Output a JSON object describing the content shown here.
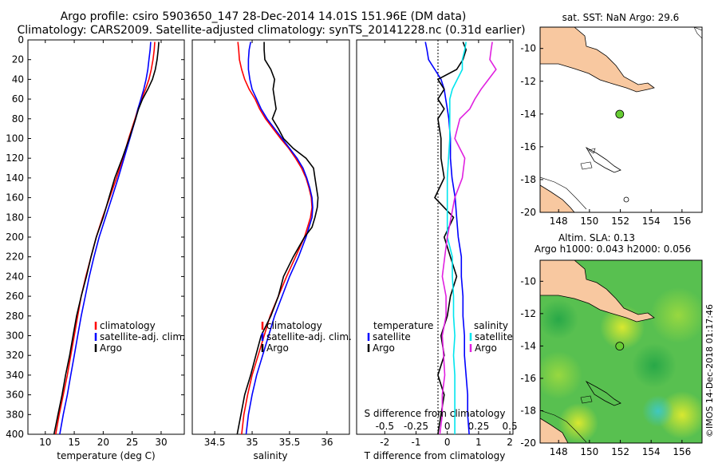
{
  "title_line1": "Argo profile: csiro 5903650_147 28-Dec-2014 14.01S 151.96E (DM data)",
  "title_line2": "Climatology: CARS2009. Satellite-adjusted climatology: synTS_20141228.nc (0.31d earlier)",
  "sst_title": "sat. SST: NaN Argo: 29.6",
  "sla_title1": "Altim. SLA: 0.13",
  "sla_title2": "Argo h1000: 0.043 h2000: 0.056",
  "credit": "©IMOS 14-Dec-2018 01:17:46",
  "colors": {
    "climatology": "#ff0000",
    "satellite": "#0000ff",
    "argo": "#000000",
    "sat_salinity": "#00e5ee",
    "argo_salinity": "#e020e0",
    "land": "#f8c8a0",
    "float_marker": "#66cc33"
  },
  "chart_data": [
    {
      "type": "line",
      "name": "temperature",
      "xlabel": "temperature (deg C)",
      "ylabel": "",
      "xlim": [
        7,
        34
      ],
      "ylim": [
        400,
        0
      ],
      "xticks": [
        "10",
        "15",
        "20",
        "25",
        "30"
      ],
      "xtick_values": [
        10,
        15,
        20,
        25,
        30
      ],
      "yticks": [
        "0",
        "20",
        "40",
        "60",
        "80",
        "100",
        "120",
        "140",
        "160",
        "180",
        "200",
        "220",
        "240",
        "260",
        "280",
        "300",
        "320",
        "340",
        "360",
        "380",
        "400"
      ],
      "legend": [
        "climatology",
        "satellite-adj. clim.",
        "Argo"
      ],
      "legend_position": "lower-right",
      "depth": [
        2,
        10,
        20,
        30,
        40,
        50,
        60,
        70,
        80,
        100,
        120,
        140,
        160,
        180,
        200,
        220,
        240,
        260,
        280,
        300,
        320,
        340,
        360,
        380,
        400
      ],
      "series": [
        {
          "name": "climatology",
          "values": [
            28.9,
            28.8,
            28.6,
            28.3,
            27.9,
            27.3,
            26.6,
            26.0,
            25.5,
            24.4,
            23.4,
            22.3,
            21.1,
            19.9,
            18.8,
            17.9,
            17.0,
            16.2,
            15.6,
            15.0,
            14.4,
            13.8,
            13.1,
            12.4,
            11.8
          ]
        },
        {
          "name": "satellite-adj. clim.",
          "values": [
            28.2,
            28.1,
            27.9,
            27.7,
            27.4,
            27.0,
            26.5,
            26.0,
            25.6,
            24.6,
            23.6,
            22.6,
            21.5,
            20.4,
            19.3,
            18.4,
            17.6,
            16.9,
            16.2,
            15.6,
            15.0,
            14.4,
            13.8,
            13.1,
            12.5
          ]
        },
        {
          "name": "Argo",
          "values": [
            29.6,
            29.5,
            29.3,
            29.0,
            28.5,
            27.7,
            26.8,
            26.1,
            25.6,
            24.5,
            23.3,
            22.0,
            21.0,
            20.0,
            18.8,
            17.9,
            17.1,
            16.2,
            15.4,
            14.8,
            14.2,
            13.5,
            12.9,
            12.2,
            11.5
          ]
        }
      ]
    },
    {
      "type": "line",
      "name": "salinity",
      "xlabel": "salinity",
      "xlim": [
        34.2,
        36.3
      ],
      "ylim": [
        400,
        0
      ],
      "xticks": [
        "34.5",
        "35",
        "35.5",
        "36"
      ],
      "xtick_values": [
        34.5,
        35,
        35.5,
        36
      ],
      "legend": [
        "climatology",
        "satellite-adj. clim.",
        "Argo"
      ],
      "legend_position": "lower-right",
      "depth": [
        2,
        10,
        20,
        30,
        40,
        50,
        60,
        70,
        80,
        90,
        100,
        110,
        120,
        130,
        140,
        150,
        160,
        170,
        180,
        190,
        200,
        220,
        240,
        260,
        280,
        300,
        320,
        340,
        360,
        380,
        400
      ],
      "series": [
        {
          "name": "climatology",
          "values": [
            34.81,
            34.82,
            34.83,
            34.86,
            34.9,
            34.96,
            35.04,
            35.1,
            35.18,
            35.28,
            35.38,
            35.49,
            35.58,
            35.66,
            35.72,
            35.76,
            35.79,
            35.8,
            35.78,
            35.74,
            35.7,
            35.58,
            35.46,
            35.35,
            35.24,
            35.16,
            35.08,
            35.0,
            34.94,
            34.89,
            34.86
          ]
        },
        {
          "name": "satellite-adj. clim.",
          "values": [
            34.98,
            34.96,
            34.95,
            34.95,
            34.97,
            35.0,
            35.06,
            35.12,
            35.2,
            35.3,
            35.4,
            35.5,
            35.6,
            35.68,
            35.73,
            35.77,
            35.8,
            35.81,
            35.8,
            35.76,
            35.72,
            35.62,
            35.5,
            35.4,
            35.3,
            35.22,
            35.14,
            35.06,
            35.0,
            34.95,
            34.92
          ]
        },
        {
          "name": "Argo",
          "values": [
            35.16,
            35.16,
            35.17,
            35.25,
            35.3,
            35.28,
            35.3,
            35.32,
            35.27,
            35.35,
            35.42,
            35.55,
            35.72,
            35.82,
            35.84,
            35.86,
            35.88,
            35.87,
            35.84,
            35.8,
            35.7,
            35.55,
            35.42,
            35.35,
            35.25,
            35.12,
            35.05,
            34.98,
            34.9,
            34.85,
            34.8
          ]
        }
      ]
    },
    {
      "type": "line",
      "name": "difference",
      "xlabel": "T difference from climatology",
      "xlabel2": "S difference from climatology",
      "xlim": [
        -2.9,
        2.1
      ],
      "ylim": [
        400,
        0
      ],
      "xticks": [
        "-2",
        "-1",
        "0",
        "1",
        "2"
      ],
      "xtick_values": [
        -2,
        -1,
        0,
        1,
        2
      ],
      "sticks": [
        "-0.5",
        "-0.25",
        "0",
        "0.25",
        "0.5"
      ],
      "stick_values": [
        -0.5,
        -0.25,
        0,
        0.25,
        0.5
      ],
      "legend_temperature_title": "temperature",
      "legend_salinity_title": "salinity",
      "legend_temperature": [
        "satellite",
        "Argo"
      ],
      "legend_salinity": [
        "satellite",
        "Argo"
      ],
      "depth": [
        2,
        10,
        20,
        30,
        40,
        50,
        60,
        70,
        80,
        100,
        120,
        140,
        160,
        180,
        200,
        220,
        240,
        260,
        280,
        300,
        320,
        340,
        360,
        380,
        400
      ],
      "series": [
        {
          "name": "T satellite",
          "values": [
            -0.7,
            -0.65,
            -0.6,
            -0.4,
            -0.2,
            -0.1,
            -0.05,
            0.0,
            0.05,
            0.1,
            0.1,
            0.15,
            0.25,
            0.3,
            0.35,
            0.45,
            0.45,
            0.5,
            0.5,
            0.55,
            0.55,
            0.6,
            0.65,
            0.65,
            0.7
          ]
        },
        {
          "name": "T Argo",
          "values": [
            0.5,
            0.6,
            0.5,
            0.3,
            -0.3,
            -0.1,
            -0.3,
            -0.1,
            -0.3,
            -0.2,
            -0.2,
            -0.1,
            -0.4,
            0.2,
            -0.1,
            0.1,
            0.3,
            0.1,
            0.0,
            -0.2,
            -0.1,
            -0.3,
            -0.1,
            -0.2,
            -0.3
          ]
        },
        {
          "name": "S satellite",
          "values": [
            0.15,
            0.14,
            0.12,
            0.12,
            0.08,
            0.04,
            0.02,
            0.02,
            0.02,
            0.02,
            0.01,
            0.0,
            0.0,
            0.0,
            0.0,
            0.04,
            0.04,
            0.05,
            0.05,
            0.06,
            0.05,
            0.06,
            0.06,
            0.06,
            0.06
          ]
        },
        {
          "name": "S Argo",
          "values": [
            0.36,
            0.35,
            0.34,
            0.39,
            0.33,
            0.27,
            0.22,
            0.18,
            0.1,
            0.06,
            0.14,
            0.12,
            0.06,
            0.03,
            0.0,
            -0.02,
            -0.04,
            -0.01,
            -0.01,
            -0.04,
            -0.03,
            -0.02,
            -0.04,
            -0.04,
            -0.06
          ]
        }
      ]
    },
    {
      "type": "map",
      "name": "sst-map",
      "title": "sat. SST: NaN Argo: 29.6",
      "xlim": [
        146.8,
        157.3
      ],
      "ylim": [
        -20,
        -8.7
      ],
      "xticks": [
        "148",
        "150",
        "152",
        "154",
        "156"
      ],
      "xtick_values": [
        148,
        150,
        152,
        154,
        156
      ],
      "yticks": [
        "-10",
        "-12",
        "-14",
        "-16",
        "-18",
        "-20"
      ],
      "ytick_values": [
        -10,
        -12,
        -14,
        -16,
        -18,
        -20
      ],
      "float_position": {
        "lon": 151.96,
        "lat": -14.01
      }
    },
    {
      "type": "map",
      "name": "sla-map",
      "title": "Altim. SLA: 0.13",
      "xlim": [
        146.8,
        157.3
      ],
      "ylim": [
        -20,
        -8.7
      ],
      "xticks": [
        "148",
        "150",
        "152",
        "154",
        "156"
      ],
      "xtick_values": [
        148,
        150,
        152,
        154,
        156
      ],
      "yticks": [
        "-10",
        "-12",
        "-14",
        "-16",
        "-18",
        "-20"
      ],
      "ytick_values": [
        -10,
        -12,
        -14,
        -16,
        -18,
        -20
      ],
      "float_position": {
        "lon": 151.96,
        "lat": -14.01
      }
    }
  ]
}
